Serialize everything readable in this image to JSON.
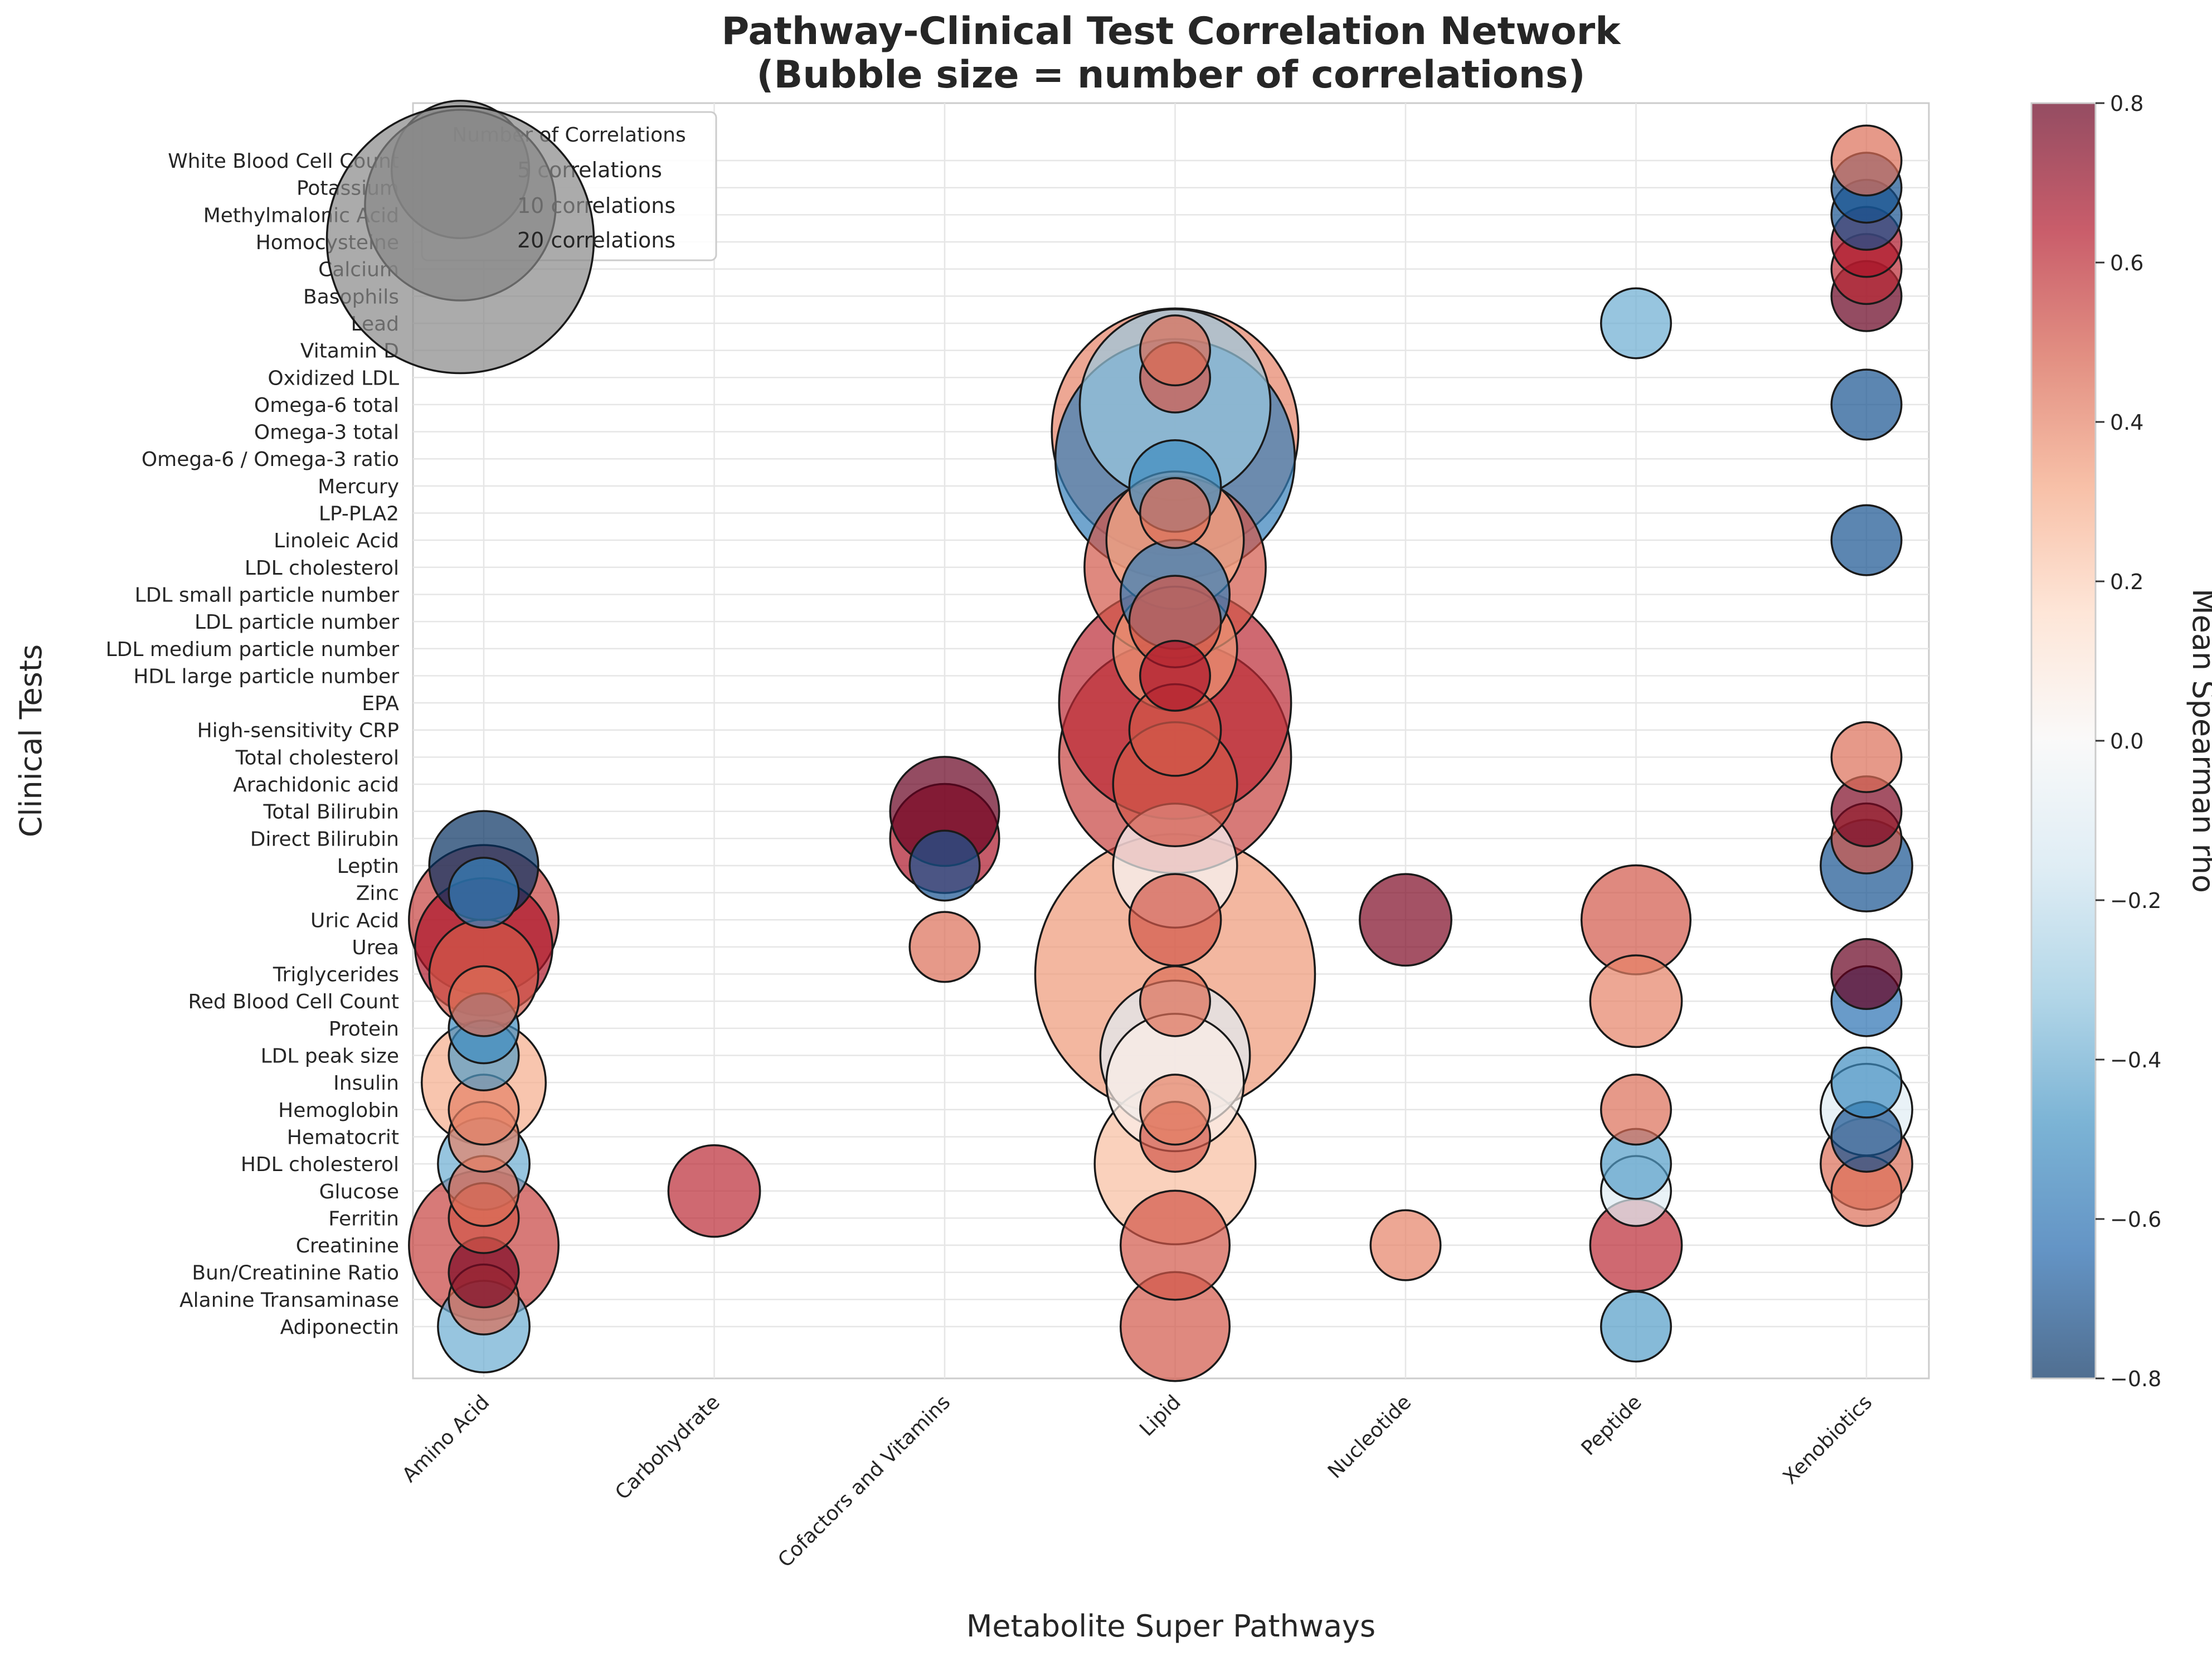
{
  "chart_data": {
    "type": "scatter",
    "title": "Pathway-Clinical Test Correlation Network",
    "subtitle": "(Bubble size = number of correlations)",
    "xlabel": "Metabolite Super Pathways",
    "ylabel": "Clinical Tests",
    "x_categories": [
      "Amino Acid",
      "Carbohydrate",
      "Cofactors and Vitamins",
      "Lipid",
      "Nucleotide",
      "Peptide",
      "Xenobiotics"
    ],
    "y_categories": [
      "Adiponectin",
      "Alanine Transaminase",
      "Bun/Creatinine Ratio",
      "Creatinine",
      "Ferritin",
      "Glucose",
      "HDL cholesterol",
      "Hematocrit",
      "Hemoglobin",
      "Insulin",
      "LDL peak size",
      "Protein",
      "Red Blood Cell Count",
      "Triglycerides",
      "Urea",
      "Uric Acid",
      "Zinc",
      "Leptin",
      "Direct Bilirubin",
      "Total Bilirubin",
      "Arachidonic acid",
      "Total cholesterol",
      "High-sensitivity CRP",
      "EPA",
      "HDL large particle number",
      "LDL medium particle number",
      "LDL particle number",
      "LDL small particle number",
      "LDL cholesterol",
      "Linoleic Acid",
      "LP-PLA2",
      "Mercury",
      "Omega-6 / Omega-3 ratio",
      "Omega-3 total",
      "Omega-6 total",
      "Oxidized LDL",
      "Vitamin D",
      "Lead",
      "Basophils",
      "Calcium",
      "Homocysteine",
      "Methylmalonic Acid",
      "Potassium",
      "White Blood Cell Count"
    ],
    "colorbar": {
      "label": "Mean Spearman rho",
      "range": [
        -0.8,
        0.8
      ],
      "ticks": [
        "0.8",
        "0.6",
        "0.4",
        "0.2",
        "0.0",
        "−0.2",
        "−0.4",
        "−0.6",
        "−0.8"
      ],
      "colormap": "RdBu_r"
    },
    "legend": {
      "title": "Number of Correlations",
      "position": "top-left",
      "entries": [
        {
          "label": "5 correlations",
          "count": 5
        },
        {
          "label": "10 correlations",
          "count": 10
        },
        {
          "label": "20 correlations",
          "count": 20
        }
      ]
    },
    "grid": true,
    "points": [
      {
        "x": "Amino Acid",
        "y": "Adiponectin",
        "count": 2,
        "rho": -0.4
      },
      {
        "x": "Amino Acid",
        "y": "Alanine Transaminase",
        "count": 1,
        "rho": 0.45
      },
      {
        "x": "Amino Acid",
        "y": "Bun/Creatinine Ratio",
        "count": 1,
        "rho": 0.75
      },
      {
        "x": "Amino Acid",
        "y": "Creatinine",
        "count": 6,
        "rho": 0.55
      },
      {
        "x": "Amino Acid",
        "y": "Ferritin",
        "count": 1,
        "rho": 0.5
      },
      {
        "x": "Amino Acid",
        "y": "Glucose",
        "count": 1,
        "rho": 0.45
      },
      {
        "x": "Amino Acid",
        "y": "HDL cholesterol",
        "count": 2,
        "rho": -0.4
      },
      {
        "x": "Amino Acid",
        "y": "Hematocrit",
        "count": 1,
        "rho": 0.4
      },
      {
        "x": "Amino Acid",
        "y": "Hemoglobin",
        "count": 1,
        "rho": 0.4
      },
      {
        "x": "Amino Acid",
        "y": "Insulin",
        "count": 4,
        "rho": 0.3
      },
      {
        "x": "Amino Acid",
        "y": "LDL peak size",
        "count": 1,
        "rho": -0.45
      },
      {
        "x": "Amino Acid",
        "y": "Protein",
        "count": 1,
        "rho": -0.5
      },
      {
        "x": "Amino Acid",
        "y": "Red Blood Cell Count",
        "count": 1,
        "rho": 0.45
      },
      {
        "x": "Amino Acid",
        "y": "Triglycerides",
        "count": 3,
        "rho": 0.5
      },
      {
        "x": "Amino Acid",
        "y": "Urea",
        "count": 5,
        "rho": 0.65
      },
      {
        "x": "Amino Acid",
        "y": "Uric Acid",
        "count": 6,
        "rho": 0.55
      },
      {
        "x": "Amino Acid",
        "y": "Zinc",
        "count": 1,
        "rho": -0.55
      },
      {
        "x": "Amino Acid",
        "y": "Leptin",
        "count": 3,
        "rho": -0.8
      },
      {
        "x": "Carbohydrate",
        "y": "Glucose",
        "count": 2,
        "rho": 0.6
      },
      {
        "x": "Cofactors and Vitamins",
        "y": "Leptin",
        "count": 1,
        "rho": -0.7
      },
      {
        "x": "Cofactors and Vitamins",
        "y": "Direct Bilirubin",
        "count": 3,
        "rho": 0.65
      },
      {
        "x": "Cofactors and Vitamins",
        "y": "Total Bilirubin",
        "count": 3,
        "rho": 0.8
      },
      {
        "x": "Cofactors and Vitamins",
        "y": "Urea",
        "count": 1,
        "rho": 0.45
      },
      {
        "x": "Lipid",
        "y": "Adiponectin",
        "count": 3,
        "rho": 0.5
      },
      {
        "x": "Lipid",
        "y": "Creatinine",
        "count": 3,
        "rho": 0.5
      },
      {
        "x": "Lipid",
        "y": "HDL cholesterol",
        "count": 7,
        "rho": 0.25
      },
      {
        "x": "Lipid",
        "y": "Hematocrit",
        "count": 1,
        "rho": 0.5
      },
      {
        "x": "Lipid",
        "y": "Hemoglobin",
        "count": 1,
        "rho": 0.4
      },
      {
        "x": "Lipid",
        "y": "Insulin",
        "count": 5,
        "rho": 0.05
      },
      {
        "x": "Lipid",
        "y": "LDL peak size",
        "count": 6,
        "rho": -0.1
      },
      {
        "x": "Lipid",
        "y": "Red Blood Cell Count",
        "count": 1,
        "rho": 0.45
      },
      {
        "x": "Lipid",
        "y": "Triglycerides",
        "count": 22,
        "rho": 0.35
      },
      {
        "x": "Lipid",
        "y": "Uric Acid",
        "count": 2,
        "rho": 0.5
      },
      {
        "x": "Lipid",
        "y": "Leptin",
        "count": 4,
        "rho": 0.0
      },
      {
        "x": "Lipid",
        "y": "Arachidonic acid",
        "count": 4,
        "rho": 0.5
      },
      {
        "x": "Lipid",
        "y": "Total cholesterol",
        "count": 15,
        "rho": 0.55
      },
      {
        "x": "Lipid",
        "y": "High-sensitivity CRP",
        "count": 2,
        "rho": 0.5
      },
      {
        "x": "Lipid",
        "y": "EPA",
        "count": 15,
        "rho": 0.6
      },
      {
        "x": "Lipid",
        "y": "HDL large particle number",
        "count": 1,
        "rho": 0.65
      },
      {
        "x": "Lipid",
        "y": "LDL medium particle number",
        "count": 4,
        "rho": 0.35
      },
      {
        "x": "Lipid",
        "y": "LDL particle number",
        "count": 2,
        "rho": 0.5
      },
      {
        "x": "Lipid",
        "y": "LDL small particle number",
        "count": 3,
        "rho": -0.55
      },
      {
        "x": "Lipid",
        "y": "LDL cholesterol",
        "count": 9,
        "rho": 0.5
      },
      {
        "x": "Lipid",
        "y": "Linoleic Acid",
        "count": 5,
        "rho": 0.3
      },
      {
        "x": "Lipid",
        "y": "LP-PLA2",
        "count": 1,
        "rho": 0.45
      },
      {
        "x": "Lipid",
        "y": "Mercury",
        "count": 2,
        "rho": -0.5
      },
      {
        "x": "Lipid",
        "y": "Omega-6 / Omega-3 ratio",
        "count": 16,
        "rho": -0.55
      },
      {
        "x": "Lipid",
        "y": "Omega-3 total",
        "count": 17,
        "rho": 0.4
      },
      {
        "x": "Lipid",
        "y": "Omega-6 total",
        "count": 10,
        "rho": -0.3
      },
      {
        "x": "Lipid",
        "y": "Oxidized LDL",
        "count": 1,
        "rho": 0.5
      },
      {
        "x": "Lipid",
        "y": "Vitamin D",
        "count": 1,
        "rho": 0.45
      },
      {
        "x": "Nucleotide",
        "y": "Creatinine",
        "count": 1,
        "rho": 0.4
      },
      {
        "x": "Nucleotide",
        "y": "Uric Acid",
        "count": 2,
        "rho": 0.75
      },
      {
        "x": "Peptide",
        "y": "Adiponectin",
        "count": 1,
        "rho": -0.45
      },
      {
        "x": "Peptide",
        "y": "Creatinine",
        "count": 2,
        "rho": 0.6
      },
      {
        "x": "Peptide",
        "y": "Glucose",
        "count": 1,
        "rho": -0.1
      },
      {
        "x": "Peptide",
        "y": "HDL cholesterol",
        "count": 1,
        "rho": -0.45
      },
      {
        "x": "Peptide",
        "y": "Hemoglobin",
        "count": 1,
        "rho": 0.45
      },
      {
        "x": "Peptide",
        "y": "Red Blood Cell Count",
        "count": 2,
        "rho": 0.4
      },
      {
        "x": "Peptide",
        "y": "Uric Acid",
        "count": 3,
        "rho": 0.5
      },
      {
        "x": "Peptide",
        "y": "Lead",
        "count": 1,
        "rho": -0.4
      },
      {
        "x": "Xenobiotics",
        "y": "Glucose",
        "count": 1,
        "rho": 0.45
      },
      {
        "x": "Xenobiotics",
        "y": "HDL cholesterol",
        "count": 2,
        "rho": 0.45
      },
      {
        "x": "Xenobiotics",
        "y": "Hematocrit",
        "count": 1,
        "rho": -0.7
      },
      {
        "x": "Xenobiotics",
        "y": "Hemoglobin",
        "count": 2,
        "rho": -0.1
      },
      {
        "x": "Xenobiotics",
        "y": "Insulin",
        "count": 1,
        "rho": -0.5
      },
      {
        "x": "Xenobiotics",
        "y": "Red Blood Cell Count",
        "count": 1,
        "rho": -0.6
      },
      {
        "x": "Xenobiotics",
        "y": "Triglycerides",
        "count": 1,
        "rho": 0.8
      },
      {
        "x": "Xenobiotics",
        "y": "Leptin",
        "count": 2,
        "rho": -0.7
      },
      {
        "x": "Xenobiotics",
        "y": "Direct Bilirubin",
        "count": 1,
        "rho": 0.5
      },
      {
        "x": "Xenobiotics",
        "y": "Total Bilirubin",
        "count": 1,
        "rho": 0.75
      },
      {
        "x": "Xenobiotics",
        "y": "Total cholesterol",
        "count": 1,
        "rho": 0.45
      },
      {
        "x": "Xenobiotics",
        "y": "Linoleic Acid",
        "count": 1,
        "rho": -0.7
      },
      {
        "x": "Xenobiotics",
        "y": "Omega-6 total",
        "count": 1,
        "rho": -0.7
      },
      {
        "x": "Xenobiotics",
        "y": "Basophils",
        "count": 1,
        "rho": 0.8
      },
      {
        "x": "Xenobiotics",
        "y": "Calcium",
        "count": 1,
        "rho": 0.6
      },
      {
        "x": "Xenobiotics",
        "y": "Homocysteine",
        "count": 1,
        "rho": 0.65
      },
      {
        "x": "Xenobiotics",
        "y": "Methylmalonic Acid",
        "count": 1,
        "rho": -0.7
      },
      {
        "x": "Xenobiotics",
        "y": "Potassium",
        "count": 1,
        "rho": -0.7
      },
      {
        "x": "Xenobiotics",
        "y": "White Blood Cell Count",
        "count": 1,
        "rho": 0.45
      }
    ]
  }
}
